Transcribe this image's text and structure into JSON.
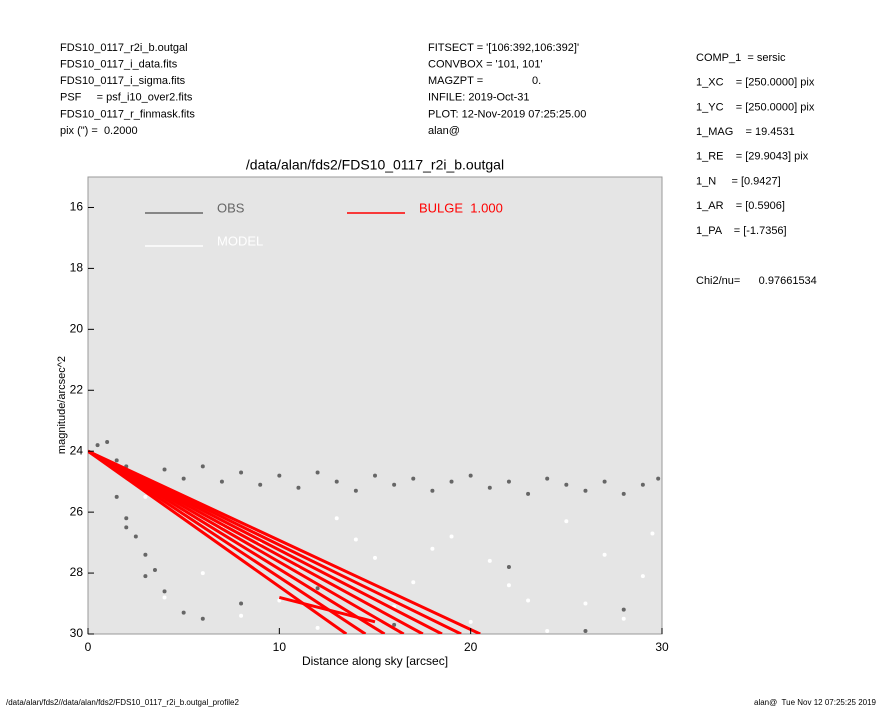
{
  "header": {
    "left": [
      "FDS10_0117_r2i_b.outgal",
      "FDS10_0117_i_data.fits",
      "FDS10_0117_i_sigma.fits",
      "PSF     = psf_i10_over2.fits",
      "FDS10_0117_r_finmask.fits",
      "pix (\") =  0.2000"
    ],
    "middle": [
      "FITSECT = '[106:392,106:392]'",
      "CONVBOX = '101, 101'",
      "MAGZPT =                0.",
      "INFILE: 2019-Oct-31",
      "PLOT: 12-Nov-2019 07:25:25.00",
      "alan@"
    ],
    "params": [
      "COMP_1  = sersic",
      "1_XC    = [250.0000] pix",
      "1_YC    = [250.0000] pix",
      "1_MAG    = 19.4531",
      "1_RE    = [29.9043] pix",
      "1_N     = [0.9427]",
      "1_AR    = [0.5906]",
      "1_PA    = [-1.7356]"
    ],
    "chi2": "Chi2/nu=      0.97661534"
  },
  "footer": {
    "left": "/data/alan/fds2//data/alan/fds2/FDS10_0117_r2i_b.outgal_profile2",
    "right": "alan@  Tue Nov 12 07:25:25 2019"
  },
  "chart_data": {
    "type": "scatter",
    "title": "/data/alan/fds2/FDS10_0117_r2i_b.outgal",
    "x_label": "Distance along sky [arcsec]",
    "y_label": "magnitude/arcsec^2",
    "xlim": [
      0,
      30
    ],
    "xticks": [
      0,
      10,
      20,
      30
    ],
    "ylim": [
      30,
      15
    ],
    "yticks": [
      16,
      18,
      20,
      22,
      24,
      26,
      28,
      30
    ],
    "background": "#e5e5e5",
    "series": [
      {
        "name": "OBS",
        "color": "#666666",
        "mode": "points",
        "x": [
          0.5,
          1,
          1.5,
          2,
          2.5,
          3,
          4,
          5,
          6,
          7,
          8,
          9,
          10,
          11,
          12,
          13,
          14,
          15,
          16,
          17,
          18,
          19,
          20,
          21,
          22,
          23,
          24,
          25,
          26,
          27,
          28,
          29,
          29.8,
          1.5,
          2,
          2.5,
          3,
          3.5,
          4,
          5,
          2,
          3,
          6,
          8,
          12,
          16,
          22,
          26,
          28
        ],
        "values": [
          23.8,
          23.7,
          24.3,
          24.5,
          24.9,
          25.2,
          24.6,
          24.9,
          24.5,
          25.0,
          24.7,
          25.1,
          24.8,
          25.2,
          24.7,
          25.0,
          25.3,
          24.8,
          25.1,
          24.9,
          25.3,
          25.0,
          24.8,
          25.2,
          25.0,
          25.4,
          24.9,
          25.1,
          25.3,
          25.0,
          25.4,
          25.1,
          24.9,
          25.5,
          26.2,
          26.8,
          27.4,
          27.9,
          28.6,
          29.3,
          26.5,
          28.1,
          29.5,
          29.0,
          28.5,
          29.7,
          27.8,
          29.9,
          29.2
        ]
      },
      {
        "name": "MODEL",
        "color": "#ffffff",
        "mode": "points",
        "x": [
          3,
          5,
          7,
          9,
          11,
          13,
          15,
          17,
          19,
          21,
          23,
          25,
          27,
          29,
          4,
          8,
          12,
          16,
          20,
          24,
          28,
          6,
          10,
          14,
          18,
          22,
          26,
          29.5
        ],
        "values": [
          25.5,
          26.0,
          26.5,
          27.0,
          27.8,
          26.2,
          27.5,
          28.3,
          26.8,
          27.6,
          28.9,
          26.3,
          27.4,
          28.1,
          28.8,
          29.4,
          29.8,
          29.1,
          29.6,
          29.9,
          29.5,
          28.0,
          28.9,
          26.9,
          27.2,
          28.4,
          29.0,
          26.7
        ]
      },
      {
        "name": "BULGE  1.000",
        "color": "#ff0000",
        "mode": "lines",
        "x": [
          0,
          20.5,
          null,
          0,
          19.5,
          null,
          0,
          18.5,
          null,
          0,
          17.5,
          null,
          0,
          16.5,
          null,
          0,
          15.5,
          null,
          0,
          14.5,
          null,
          0,
          13.5,
          null,
          10,
          15
        ],
        "values": [
          24,
          30,
          null,
          24,
          30,
          null,
          24,
          30,
          null,
          24,
          30,
          null,
          24,
          30,
          null,
          24,
          30,
          null,
          24,
          30,
          null,
          24,
          30,
          null,
          28.8,
          29.6
        ]
      }
    ]
  }
}
